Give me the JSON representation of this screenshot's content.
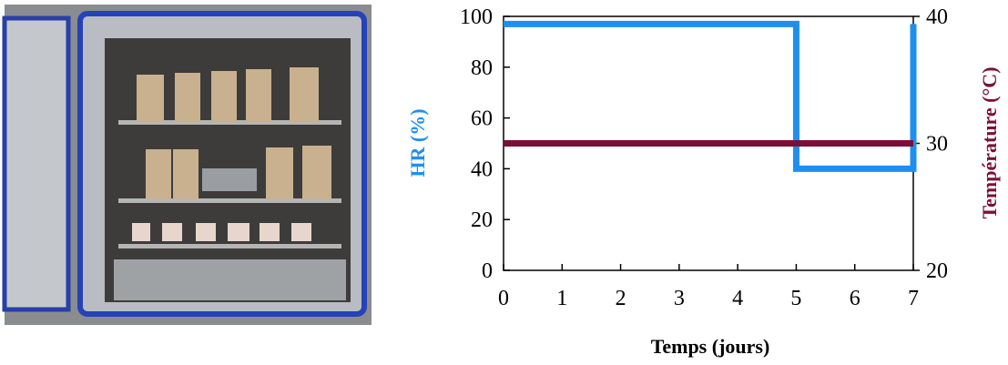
{
  "chart_data": {
    "type": "line",
    "x_label": "Temps (jours)",
    "y_label": "HR (%)",
    "y2_label": "Température (°C)",
    "xlim": [
      0,
      7
    ],
    "xticks": [
      0,
      1,
      2,
      3,
      4,
      5,
      6,
      7
    ],
    "ylim": [
      0,
      100
    ],
    "yticks": [
      0,
      20,
      40,
      60,
      80,
      100
    ],
    "y2lim": [
      20,
      40
    ],
    "y2ticks": [
      20,
      30,
      40
    ],
    "series": [
      {
        "name": "HR",
        "color": "#1e8ff0",
        "x": [
          0,
          5,
          5,
          7,
          7
        ],
        "values": [
          97,
          97,
          40,
          40,
          97
        ]
      },
      {
        "name": "Température",
        "color": "#7a1038",
        "axis": "y2",
        "x": [
          0,
          7
        ],
        "values": [
          30,
          30
        ]
      }
    ]
  }
}
